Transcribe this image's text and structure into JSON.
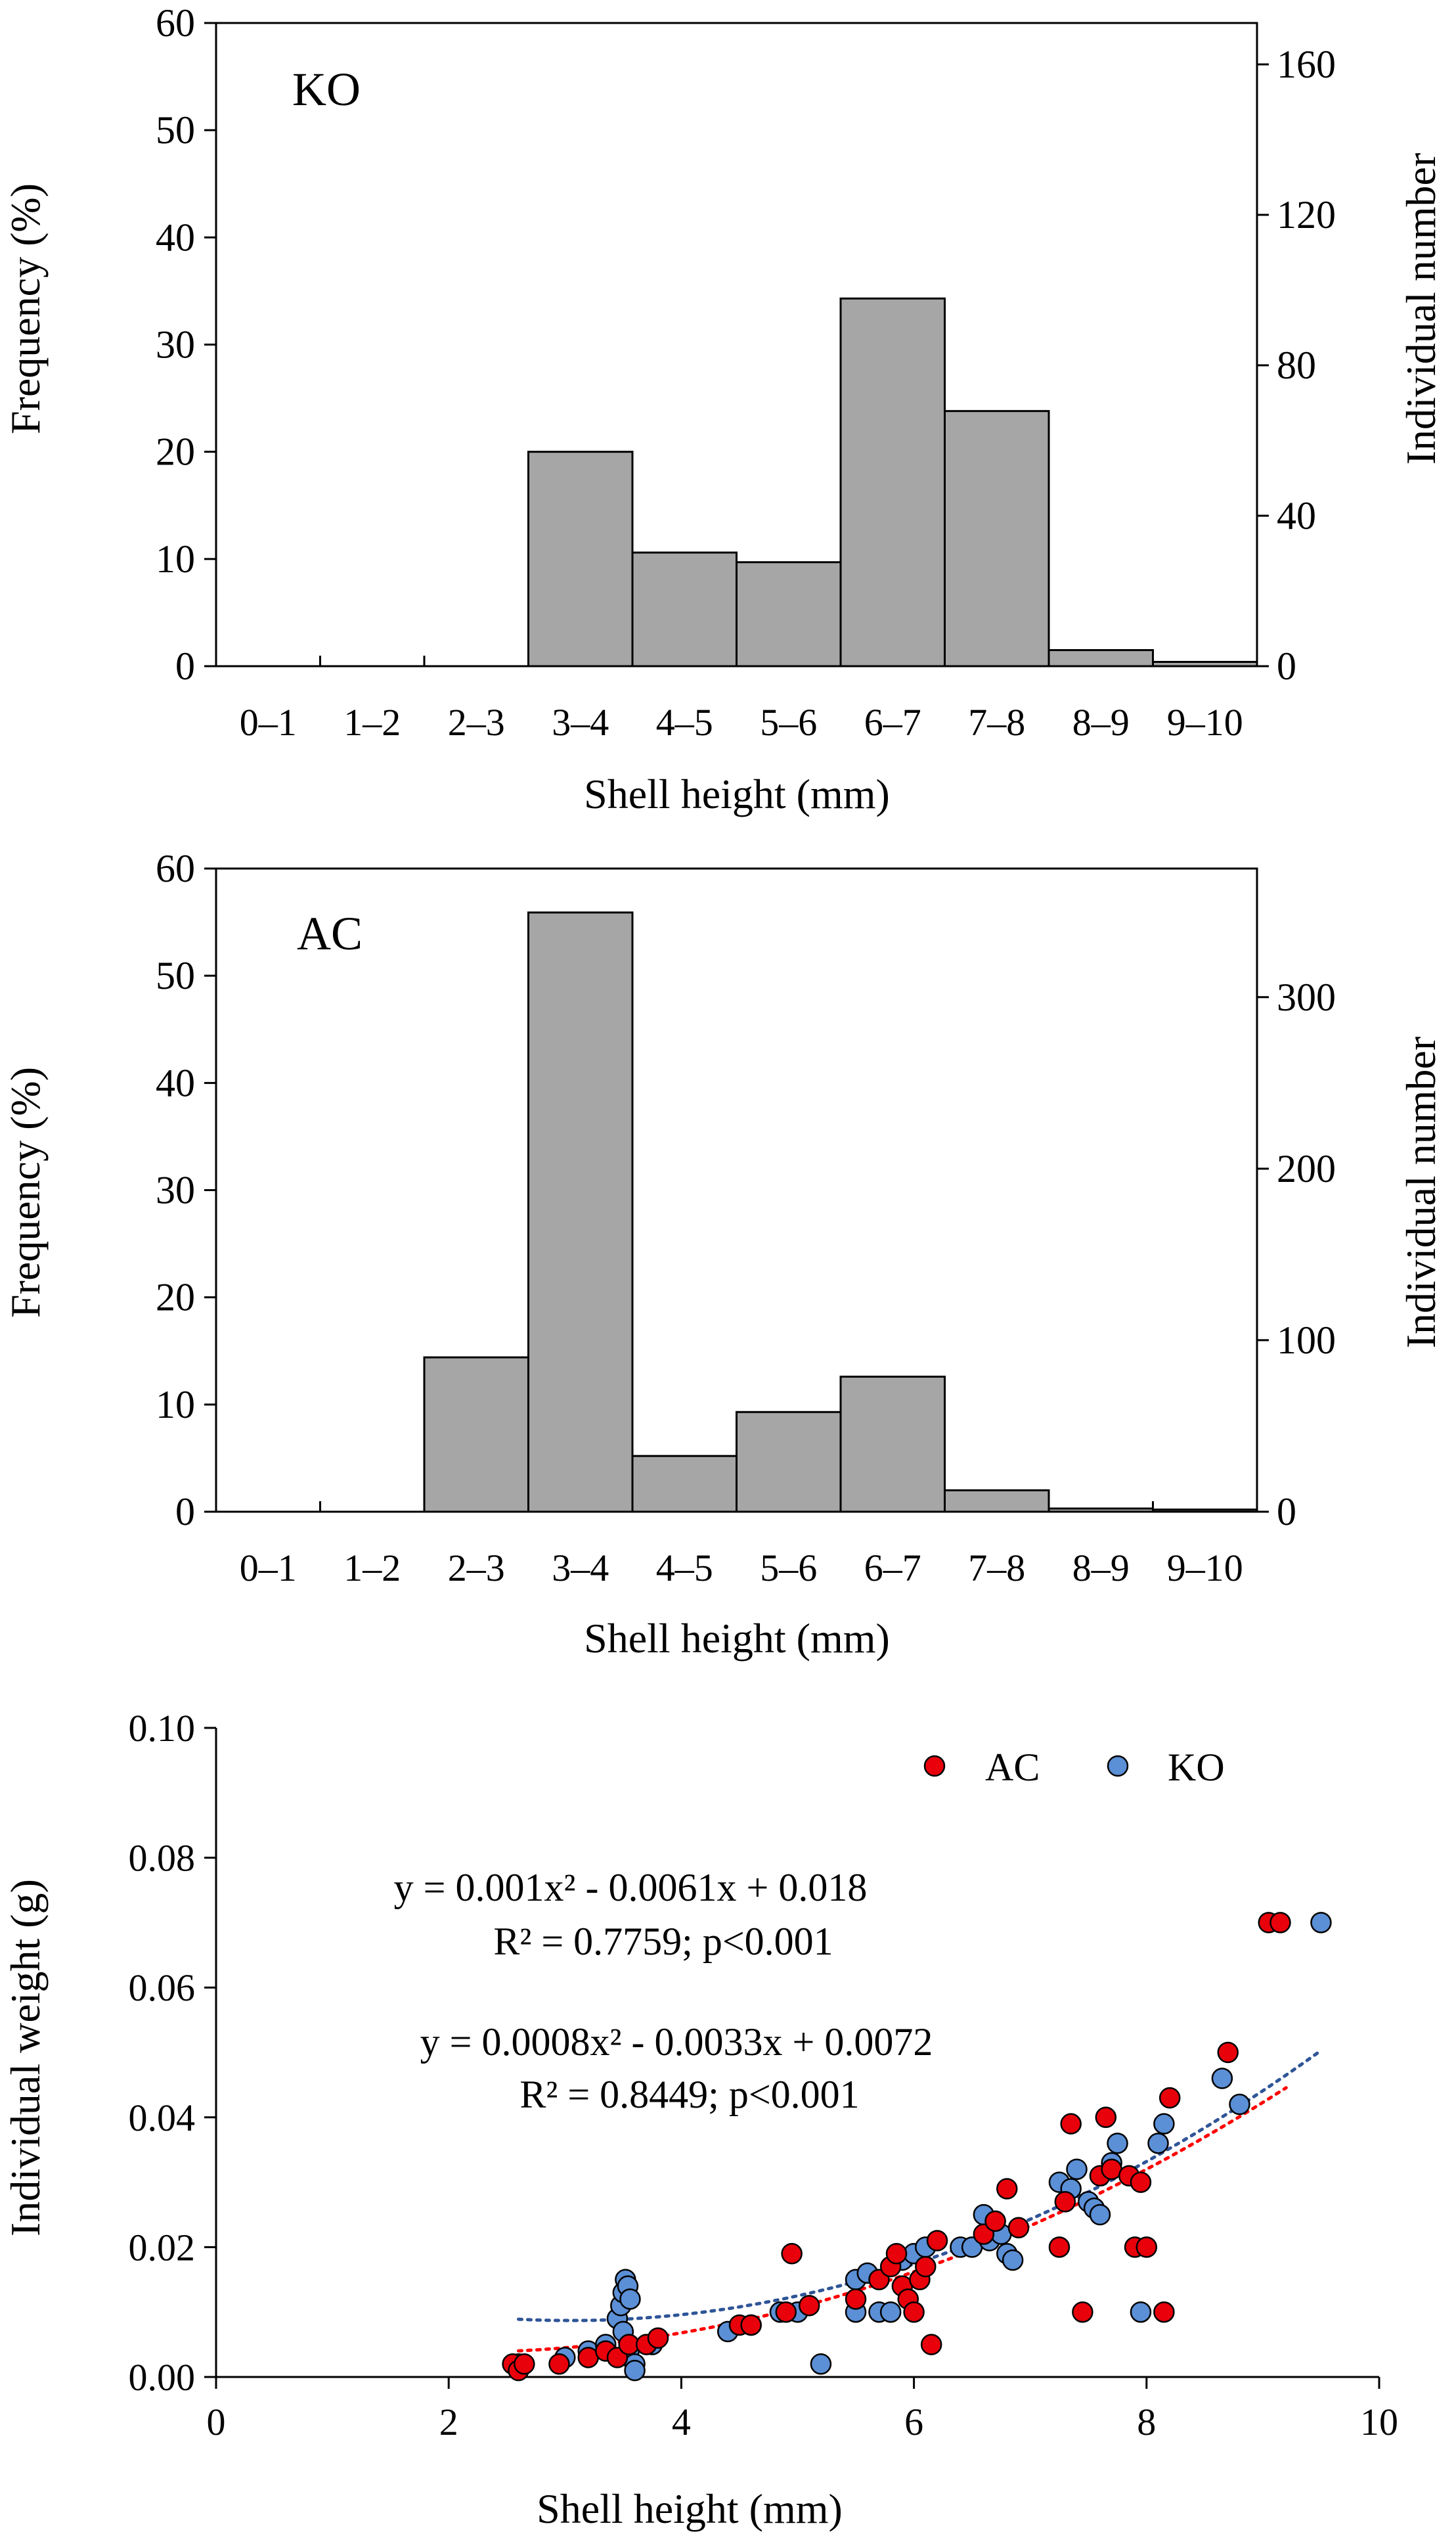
{
  "chart_data": [
    {
      "type": "bar",
      "panel_label": "KO",
      "categories": [
        "0–1",
        "1–2",
        "2–3",
        "3–4",
        "4–5",
        "5–6",
        "6–7",
        "7–8",
        "8–9",
        "9–10"
      ],
      "values": [
        0,
        0,
        0,
        20.0,
        10.6,
        9.7,
        34.3,
        23.8,
        1.5,
        0.4
      ],
      "xlabel": "Shell height (mm)",
      "ylabel": "Frequency (%)",
      "ylim": [
        0,
        60
      ],
      "yticks": [
        "0",
        "10",
        "20",
        "30",
        "40",
        "50",
        "60"
      ],
      "y2label": "Individual number",
      "y2lim": [
        0,
        171
      ],
      "y2ticks": [
        "0",
        "40",
        "80",
        "120",
        "160"
      ],
      "bar_color": "#a6a6a6"
    },
    {
      "type": "bar",
      "panel_label": "AC",
      "categories": [
        "0–1",
        "1–2",
        "2–3",
        "3–4",
        "4–5",
        "5–6",
        "6–7",
        "7–8",
        "8–9",
        "9–10"
      ],
      "values": [
        0,
        0,
        14.4,
        55.9,
        5.2,
        9.3,
        12.6,
        2.0,
        0.3,
        0.2
      ],
      "xlabel": "Shell height (mm)",
      "ylabel": "Frequency (%)",
      "ylim": [
        0,
        60
      ],
      "yticks": [
        "0",
        "10",
        "20",
        "30",
        "40",
        "50",
        "60"
      ],
      "y2label": "Individual number",
      "y2lim": [
        0,
        375
      ],
      "y2ticks": [
        "0",
        "100",
        "200",
        "300"
      ],
      "bar_color": "#a6a6a6"
    },
    {
      "type": "scatter",
      "xlabel": "Shell height (mm)",
      "ylabel": "Individual weight (g)",
      "xlim": [
        0,
        10
      ],
      "ylim": [
        0,
        0.1
      ],
      "xticks": [
        "0",
        "2",
        "4",
        "6",
        "8",
        "10"
      ],
      "yticks": [
        "0.00",
        "0.02",
        "0.04",
        "0.06",
        "0.08",
        "0.10"
      ],
      "legend": [
        {
          "name": "AC",
          "color": "#e8000b"
        },
        {
          "name": "KO",
          "color": "#5b8fd6"
        }
      ],
      "fits": [
        {
          "series": "KO",
          "color": "#2f5597",
          "equation": "y = 0.001x² - 0.0061x + 0.018",
          "r2": "R² = 0.7759; p<0.001",
          "coef": [
            0.001,
            -0.0061,
            0.018
          ],
          "x_range": [
            2.6,
            9.5
          ]
        },
        {
          "series": "AC",
          "color": "#ff0000",
          "equation": "y = 0.0008x² - 0.0033x + 0.0072",
          "r2": "R² = 0.8449; p<0.001",
          "coef": [
            0.0008,
            -0.0033,
            0.0072
          ],
          "x_range": [
            2.6,
            9.2
          ]
        }
      ],
      "series": [
        {
          "name": "AC",
          "color": "#e8000b",
          "points": [
            [
              2.55,
              0.002
            ],
            [
              2.6,
              0.001
            ],
            [
              2.65,
              0.002
            ],
            [
              2.95,
              0.002
            ],
            [
              3.2,
              0.003
            ],
            [
              3.35,
              0.004
            ],
            [
              3.45,
              0.003
            ],
            [
              3.55,
              0.005
            ],
            [
              3.7,
              0.005
            ],
            [
              3.8,
              0.006
            ],
            [
              4.5,
              0.008
            ],
            [
              4.6,
              0.008
            ],
            [
              4.9,
              0.01
            ],
            [
              4.95,
              0.019
            ],
            [
              5.1,
              0.011
            ],
            [
              5.5,
              0.012
            ],
            [
              5.7,
              0.015
            ],
            [
              5.8,
              0.017
            ],
            [
              5.85,
              0.019
            ],
            [
              5.9,
              0.014
            ],
            [
              5.95,
              0.012
            ],
            [
              6.0,
              0.01
            ],
            [
              6.05,
              0.015
            ],
            [
              6.1,
              0.017
            ],
            [
              6.15,
              0.005
            ],
            [
              6.2,
              0.021
            ],
            [
              6.6,
              0.022
            ],
            [
              6.7,
              0.024
            ],
            [
              6.8,
              0.029
            ],
            [
              6.9,
              0.023
            ],
            [
              7.25,
              0.02
            ],
            [
              7.3,
              0.027
            ],
            [
              7.35,
              0.039
            ],
            [
              7.45,
              0.01
            ],
            [
              7.6,
              0.031
            ],
            [
              7.65,
              0.04
            ],
            [
              7.7,
              0.032
            ],
            [
              7.85,
              0.031
            ],
            [
              7.9,
              0.02
            ],
            [
              7.95,
              0.03
            ],
            [
              8.0,
              0.02
            ],
            [
              8.15,
              0.01
            ],
            [
              8.2,
              0.043
            ],
            [
              8.7,
              0.05
            ],
            [
              9.05,
              0.07
            ],
            [
              9.15,
              0.07
            ]
          ]
        },
        {
          "name": "KO",
          "color": "#5b8fd6",
          "points": [
            [
              2.6,
              0.002
            ],
            [
              3.0,
              0.003
            ],
            [
              3.2,
              0.004
            ],
            [
              3.35,
              0.005
            ],
            [
              3.45,
              0.009
            ],
            [
              3.48,
              0.011
            ],
            [
              3.5,
              0.013
            ],
            [
              3.52,
              0.015
            ],
            [
              3.54,
              0.014
            ],
            [
              3.56,
              0.012
            ],
            [
              3.5,
              0.007
            ],
            [
              3.55,
              0.004
            ],
            [
              3.6,
              0.002
            ],
            [
              3.6,
              0.001
            ],
            [
              3.75,
              0.005
            ],
            [
              4.4,
              0.007
            ],
            [
              4.6,
              0.008
            ],
            [
              4.85,
              0.01
            ],
            [
              5.0,
              0.01
            ],
            [
              5.2,
              0.002
            ],
            [
              5.5,
              0.015
            ],
            [
              5.5,
              0.01
            ],
            [
              5.6,
              0.016
            ],
            [
              5.7,
              0.01
            ],
            [
              5.8,
              0.01
            ],
            [
              5.9,
              0.018
            ],
            [
              6.0,
              0.019
            ],
            [
              6.1,
              0.02
            ],
            [
              6.4,
              0.02
            ],
            [
              6.5,
              0.02
            ],
            [
              6.6,
              0.025
            ],
            [
              6.65,
              0.021
            ],
            [
              6.7,
              0.024
            ],
            [
              6.75,
              0.022
            ],
            [
              6.8,
              0.019
            ],
            [
              6.85,
              0.018
            ],
            [
              7.25,
              0.03
            ],
            [
              7.35,
              0.029
            ],
            [
              7.4,
              0.032
            ],
            [
              7.5,
              0.027
            ],
            [
              7.55,
              0.026
            ],
            [
              7.6,
              0.025
            ],
            [
              7.7,
              0.033
            ],
            [
              7.75,
              0.036
            ],
            [
              7.95,
              0.01
            ],
            [
              8.1,
              0.036
            ],
            [
              8.15,
              0.039
            ],
            [
              8.65,
              0.046
            ],
            [
              8.8,
              0.042
            ],
            [
              9.5,
              0.07
            ]
          ]
        }
      ]
    }
  ]
}
